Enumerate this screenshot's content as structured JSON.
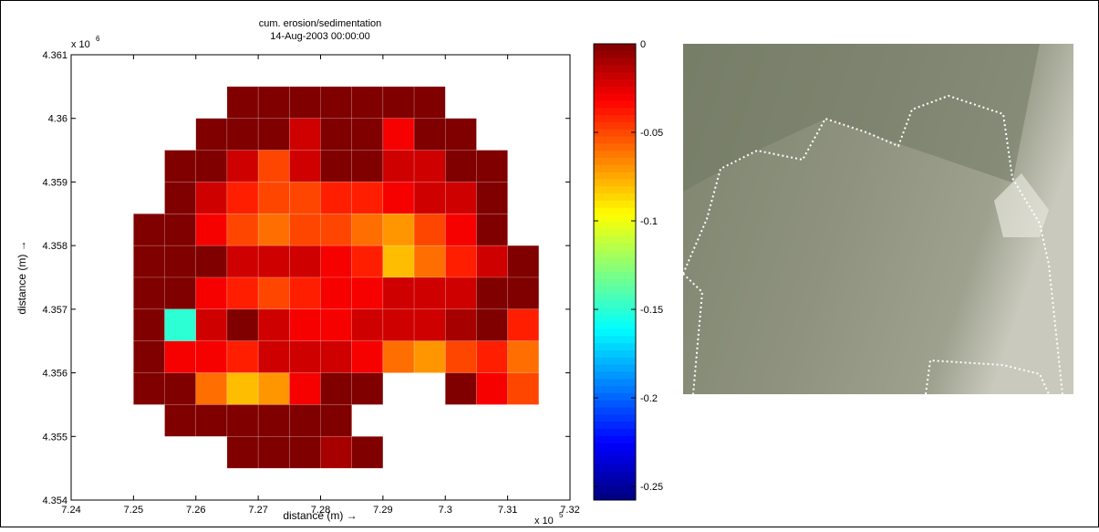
{
  "chart_data": {
    "type": "heatmap",
    "title": "cum. erosion/sedimentation",
    "subtitle": "14-Aug-2003 00:00:00",
    "xlabel": "distance (m) →",
    "ylabel": "distance (m) →",
    "x_multiplier": "x 10",
    "x_multiplier_exp": "5",
    "y_multiplier": "x 10",
    "y_multiplier_exp": "6",
    "xlim": [
      724000,
      732000
    ],
    "ylim": [
      4354000,
      4361000
    ],
    "xticks": [
      {
        "value": 724000,
        "label": "7.24"
      },
      {
        "value": 725000,
        "label": "7.25"
      },
      {
        "value": 726000,
        "label": "7.26"
      },
      {
        "value": 727000,
        "label": "7.27"
      },
      {
        "value": 728000,
        "label": "7.28"
      },
      {
        "value": 729000,
        "label": "7.29"
      },
      {
        "value": 730000,
        "label": "7.3"
      },
      {
        "value": 731000,
        "label": "7.31"
      },
      {
        "value": 732000,
        "label": "7.32"
      }
    ],
    "yticks": [
      {
        "value": 4354000,
        "label": "4.354"
      },
      {
        "value": 4355000,
        "label": "4.355"
      },
      {
        "value": 4356000,
        "label": "4.356"
      },
      {
        "value": 4357000,
        "label": "4.357"
      },
      {
        "value": 4358000,
        "label": "4.358"
      },
      {
        "value": 4359000,
        "label": "4.359"
      },
      {
        "value": 4360000,
        "label": "4.36"
      },
      {
        "value": 4361000,
        "label": "4.361"
      }
    ],
    "x": [
      725250,
      725750,
      726250,
      726750,
      727250,
      727750,
      728250,
      728750,
      729250,
      729750,
      730250,
      730750,
      731250
    ],
    "y": [
      4360250,
      4359750,
      4359250,
      4358750,
      4358250,
      4357750,
      4357250,
      4356750,
      4356250,
      4355750,
      4355250,
      4354750
    ],
    "z": [
      [
        null,
        null,
        null,
        0,
        0,
        0,
        0,
        0,
        0,
        0,
        null,
        null,
        null
      ],
      [
        null,
        null,
        0,
        0,
        0,
        -0.02,
        0,
        0,
        -0.03,
        0,
        0,
        null,
        null
      ],
      [
        null,
        0,
        0,
        -0.02,
        -0.05,
        -0.02,
        0,
        0,
        -0.02,
        -0.02,
        0,
        0,
        null
      ],
      [
        null,
        0,
        -0.02,
        -0.04,
        -0.05,
        -0.05,
        -0.04,
        -0.04,
        -0.03,
        -0.02,
        -0.02,
        0,
        null
      ],
      [
        0,
        0,
        -0.03,
        -0.05,
        -0.06,
        -0.05,
        -0.05,
        -0.06,
        -0.07,
        -0.05,
        -0.03,
        0,
        null
      ],
      [
        0,
        0,
        0,
        -0.02,
        -0.02,
        -0.02,
        -0.03,
        -0.04,
        -0.08,
        -0.06,
        -0.04,
        -0.02,
        0
      ],
      [
        0,
        0,
        -0.03,
        -0.04,
        -0.05,
        -0.04,
        -0.03,
        -0.03,
        -0.02,
        -0.02,
        -0.02,
        0,
        0
      ],
      [
        0,
        -0.15,
        -0.02,
        0,
        -0.02,
        -0.03,
        -0.03,
        -0.02,
        -0.02,
        -0.02,
        -0.01,
        0,
        -0.04
      ],
      [
        0,
        -0.03,
        -0.03,
        -0.04,
        -0.02,
        -0.02,
        -0.02,
        -0.03,
        -0.06,
        -0.07,
        -0.05,
        -0.04,
        -0.06
      ],
      [
        0,
        0,
        -0.06,
        -0.08,
        -0.07,
        -0.03,
        0,
        0,
        null,
        null,
        0,
        -0.03,
        -0.05
      ],
      [
        null,
        0,
        0,
        0,
        0,
        0,
        0,
        null,
        null,
        null,
        null,
        null,
        null
      ],
      [
        null,
        null,
        null,
        0,
        0,
        0,
        -0.01,
        0,
        null,
        null,
        null,
        null,
        null
      ]
    ],
    "colormap": "jet",
    "clim": [
      -0.2577,
      0
    ],
    "cticks": [
      0,
      -0.05,
      -0.1,
      -0.15,
      -0.2,
      -0.25
    ]
  }
}
